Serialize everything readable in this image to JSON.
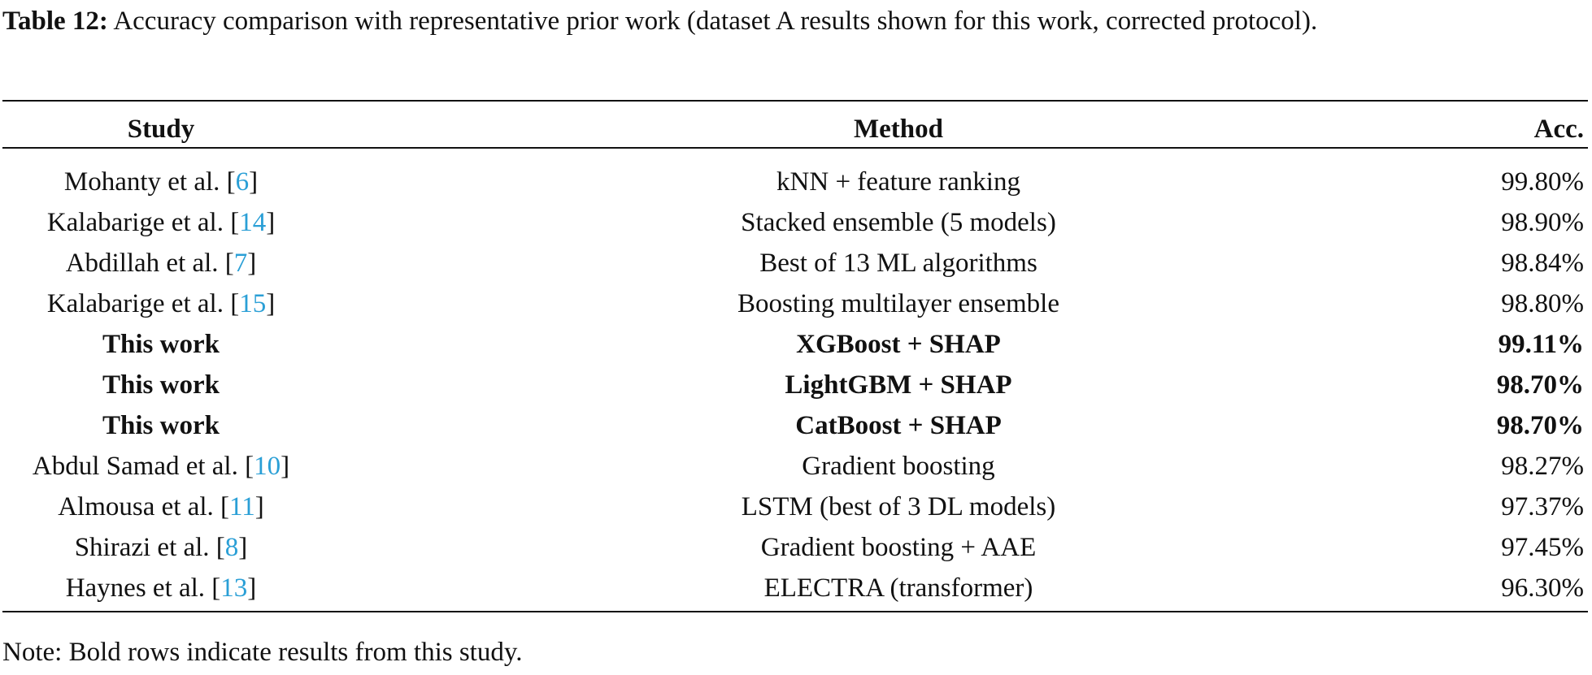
{
  "table": {
    "caption": {
      "label": "Table 12:",
      "text": "Accuracy comparison with representative prior work (dataset A results shown for this work, corrected protocol)."
    },
    "columns": [
      "Study",
      "Method",
      "Acc."
    ],
    "rows": [
      {
        "study": {
          "text": "Mohanty et al. [",
          "ref": "6",
          "end": "]"
        },
        "method": "kNN + feature ranking",
        "acc": "99.80%",
        "bold": false
      },
      {
        "study": {
          "text": "Kalabarige et al. [",
          "ref": "14",
          "end": "]"
        },
        "method": "Stacked ensemble (5 models)",
        "acc": "98.90%",
        "bold": false
      },
      {
        "study": {
          "text": "Abdillah et al. [",
          "ref": "7",
          "end": "]"
        },
        "method": "Best of 13 ML algorithms",
        "acc": "98.84%",
        "bold": false
      },
      {
        "study": {
          "text": "Kalabarige et al. [",
          "ref": "15",
          "end": "]"
        },
        "method": "Boosting multilayer ensemble",
        "acc": "98.80%",
        "bold": false
      },
      {
        "study": {
          "text": "This work"
        },
        "method": "XGBoost + SHAP",
        "acc": "99.11%",
        "bold": true
      },
      {
        "study": {
          "text": "This work"
        },
        "method": "LightGBM + SHAP",
        "acc": "98.70%",
        "bold": true
      },
      {
        "study": {
          "text": "This work"
        },
        "method": "CatBoost + SHAP",
        "acc": "98.70%",
        "bold": true
      },
      {
        "study": {
          "text": "Abdul Samad et al. [",
          "ref": "10",
          "end": "]"
        },
        "method": "Gradient boosting",
        "acc": "98.27%",
        "bold": false
      },
      {
        "study": {
          "text": "Almousa et al. [",
          "ref": "11",
          "end": "]"
        },
        "method": "LSTM (best of 3 DL models)",
        "acc": "97.37%",
        "bold": false
      },
      {
        "study": {
          "text": "Shirazi et al. [",
          "ref": "8",
          "end": "]"
        },
        "method": "Gradient boosting + AAE",
        "acc": "97.45%",
        "bold": false
      },
      {
        "study": {
          "text": "Haynes et al. [",
          "ref": "13",
          "end": "]"
        },
        "method": "ELECTRA (transformer)",
        "acc": "96.30%",
        "bold": false
      }
    ],
    "note": "Note: Bold rows indicate results from this study."
  }
}
